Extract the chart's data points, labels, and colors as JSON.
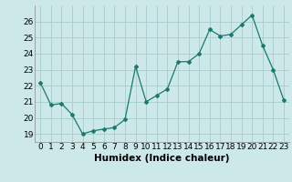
{
  "x": [
    0,
    1,
    2,
    3,
    4,
    5,
    6,
    7,
    8,
    9,
    10,
    11,
    12,
    13,
    14,
    15,
    16,
    17,
    18,
    19,
    20,
    21,
    22,
    23
  ],
  "y": [
    22.2,
    20.8,
    20.9,
    20.2,
    19.0,
    19.2,
    19.3,
    19.4,
    19.9,
    23.2,
    21.0,
    21.4,
    21.8,
    23.5,
    23.5,
    24.0,
    25.5,
    25.1,
    25.2,
    25.8,
    26.4,
    24.5,
    23.0,
    21.1
  ],
  "xlabel": "Humidex (Indice chaleur)",
  "ylim": [
    18.5,
    27.0
  ],
  "xlim": [
    -0.5,
    23.5
  ],
  "yticks": [
    19,
    20,
    21,
    22,
    23,
    24,
    25,
    26
  ],
  "xticks": [
    0,
    1,
    2,
    3,
    4,
    5,
    6,
    7,
    8,
    9,
    10,
    11,
    12,
    13,
    14,
    15,
    16,
    17,
    18,
    19,
    20,
    21,
    22,
    23
  ],
  "line_color": "#1a7a6e",
  "marker": "D",
  "marker_size": 2.0,
  "bg_color": "#cce8e8",
  "grid_color": "#a8cccc",
  "tick_label_fontsize": 6.5,
  "xlabel_fontsize": 7.5
}
